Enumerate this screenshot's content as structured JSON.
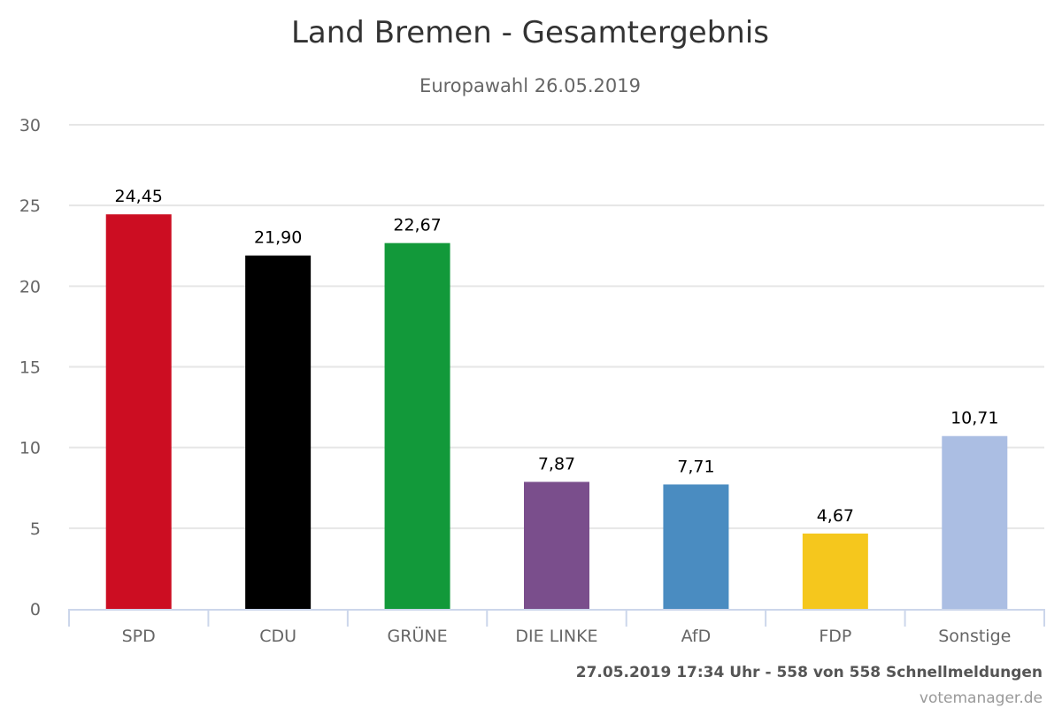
{
  "chart_data": {
    "type": "bar",
    "title": "Land Bremen - Gesamtergebnis",
    "subtitle": "Europawahl 26.05.2019",
    "xlabel": "",
    "ylabel": "",
    "ylim": [
      0,
      30
    ],
    "yticks": [
      0,
      5,
      10,
      15,
      20,
      25,
      30
    ],
    "ytick_labels": [
      "0",
      "5",
      "10",
      "15",
      "20",
      "25",
      "30"
    ],
    "grid": true,
    "legend": "none",
    "categories": [
      "SPD",
      "CDU",
      "GRÜNE",
      "DIE LINKE",
      "AfD",
      "FDP",
      "Sonstige"
    ],
    "values": [
      24.45,
      21.9,
      22.67,
      7.87,
      7.71,
      4.67,
      10.71
    ],
    "data_labels": [
      "24,45",
      "21,90",
      "22,67",
      "7,87",
      "7,71",
      "4,67",
      "10,71"
    ],
    "colors": [
      "#cc0d22",
      "#000000",
      "#12993a",
      "#7a4e8c",
      "#4a8cc1",
      "#f5c71d",
      "#abbee3"
    ]
  },
  "footer": {
    "status": "27.05.2019 17:34 Uhr - 558 von 558 Schnellmeldungen",
    "source": "votemanager.de"
  }
}
